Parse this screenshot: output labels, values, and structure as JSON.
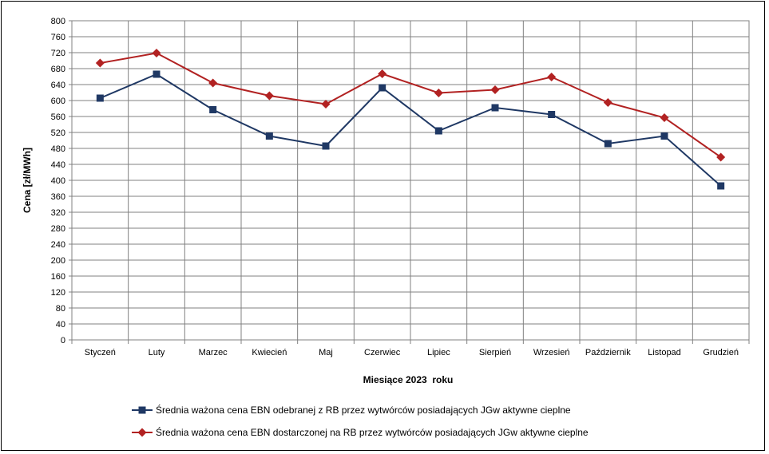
{
  "chart_data": {
    "type": "line",
    "title": "",
    "xlabel": "Miesiące 2023  roku",
    "ylabel": "Cena [zł/MWh]",
    "ylim": [
      0,
      800
    ],
    "ytick_step": 40,
    "grid": true,
    "legend_position": "bottom",
    "categories": [
      "Styczeń",
      "Luty",
      "Marzec",
      "Kwiecień",
      "Maj",
      "Czerwiec",
      "Lipiec",
      "Sierpień",
      "Wrzesień",
      "Październik",
      "Listopad",
      "Grudzień"
    ],
    "series": [
      {
        "name": "Średnia ważona cena EBN odebranej z RB przez wytwórców posiadających JGw aktywne cieplne",
        "color": "#1f3864",
        "marker": "square",
        "values": [
          606,
          666,
          577,
          511,
          486,
          632,
          524,
          582,
          565,
          492,
          511,
          386
        ]
      },
      {
        "name": "Średnia ważona cena EBN dostarczonej na RB przez wytwórców posiadających JGw aktywne cieplne",
        "color": "#b22222",
        "marker": "diamond",
        "values": [
          694,
          719,
          644,
          612,
          591,
          667,
          619,
          627,
          659,
          595,
          557,
          458
        ]
      }
    ]
  }
}
